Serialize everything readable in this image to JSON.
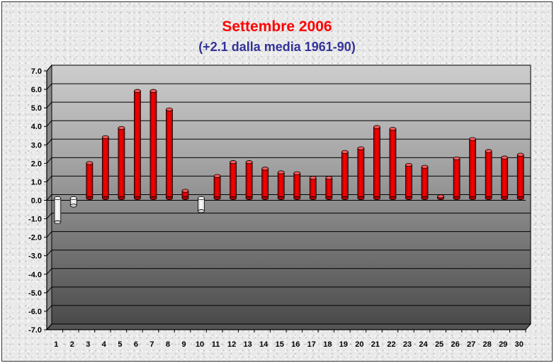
{
  "chart_data": {
    "type": "bar",
    "title": "Settembre 2006",
    "subtitle": "(+2.1 dalla media 1961-90)",
    "categories": [
      "1",
      "2",
      "3",
      "4",
      "5",
      "6",
      "7",
      "8",
      "9",
      "10",
      "11",
      "12",
      "13",
      "14",
      "15",
      "16",
      "17",
      "18",
      "19",
      "20",
      "21",
      "22",
      "23",
      "24",
      "25",
      "26",
      "27",
      "28",
      "29",
      "30"
    ],
    "values": [
      -1.3,
      -0.4,
      1.9,
      3.3,
      3.8,
      5.8,
      5.8,
      4.8,
      0.4,
      -0.7,
      1.2,
      1.95,
      1.95,
      1.6,
      1.4,
      1.35,
      1.1,
      1.1,
      2.5,
      2.7,
      3.85,
      3.75,
      1.8,
      1.7,
      0.1,
      2.15,
      3.2,
      2.55,
      2.2,
      2.35
    ],
    "ylim": [
      -7,
      7
    ],
    "yticks": [
      "-7.0",
      "-6.0",
      "-5.0",
      "-4.0",
      "-3.0",
      "-2.0",
      "-1.0",
      "0.0",
      "1.0",
      "2.0",
      "3.0",
      "4.0",
      "5.0",
      "6.0",
      "7.0"
    ],
    "grid": true,
    "colors": {
      "above": "#ff0000",
      "below": "#ffffff",
      "title": "#ff0000",
      "subtitle": "#333399"
    }
  }
}
